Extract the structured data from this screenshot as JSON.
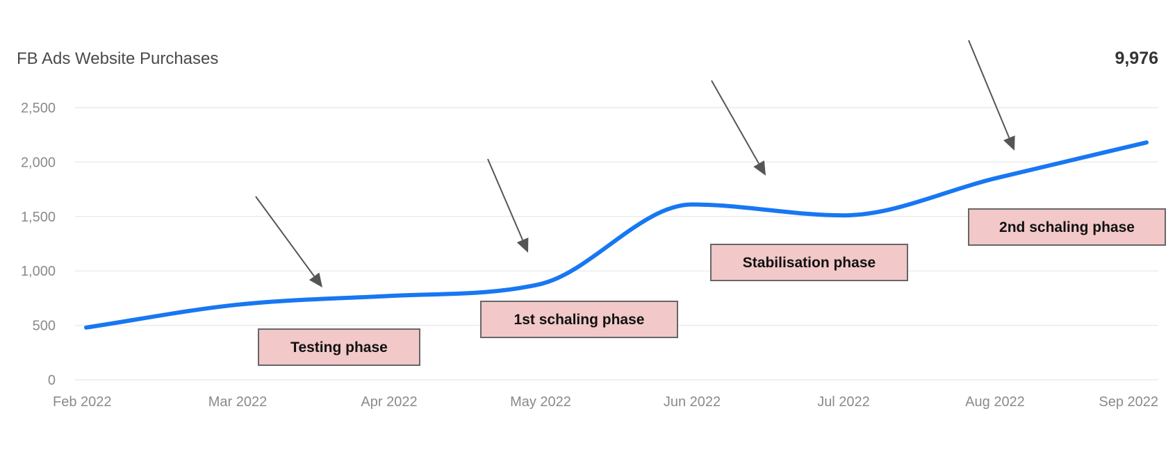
{
  "chart_data": {
    "type": "line",
    "title": "FB Ads Website Purchases",
    "total_label": "9,976",
    "xlabel": "",
    "ylabel": "",
    "x_ticks": [
      "Feb 2022",
      "Mar 2022",
      "Apr 2022",
      "May 2022",
      "Jun 2022",
      "Jul 2022",
      "Aug 2022",
      "Sep 2022"
    ],
    "y_ticks": [
      "0",
      "500",
      "1,000",
      "1,500",
      "2,000",
      "2,500"
    ],
    "y_tick_values": [
      0,
      500,
      1000,
      1500,
      2000,
      2500
    ],
    "ylim": [
      0,
      2500
    ],
    "grid": true,
    "series": [
      {
        "color": "#1877f2",
        "x": [
          "Feb 2022",
          "Mar 2022",
          "Apr 2022",
          "May 2022",
          "Jun 2022",
          "Jul 2022",
          "Aug 2022",
          "Sep 2022"
        ],
        "values": [
          480,
          690,
          770,
          880,
          1610,
          1510,
          1850,
          2180
        ]
      }
    ],
    "annotations": [
      {
        "label": "Testing phase",
        "at_x": "Apr 2022",
        "near_y": 180
      },
      {
        "label": "1st schaling phase",
        "at_x": "May 2022",
        "near_y": 440
      },
      {
        "label": "Stabilisation phase",
        "at_x": "Jul 2022",
        "near_y": 970
      },
      {
        "label": "2nd schaling phase",
        "at_x": "Sep 2022",
        "near_y": 1330
      }
    ]
  }
}
